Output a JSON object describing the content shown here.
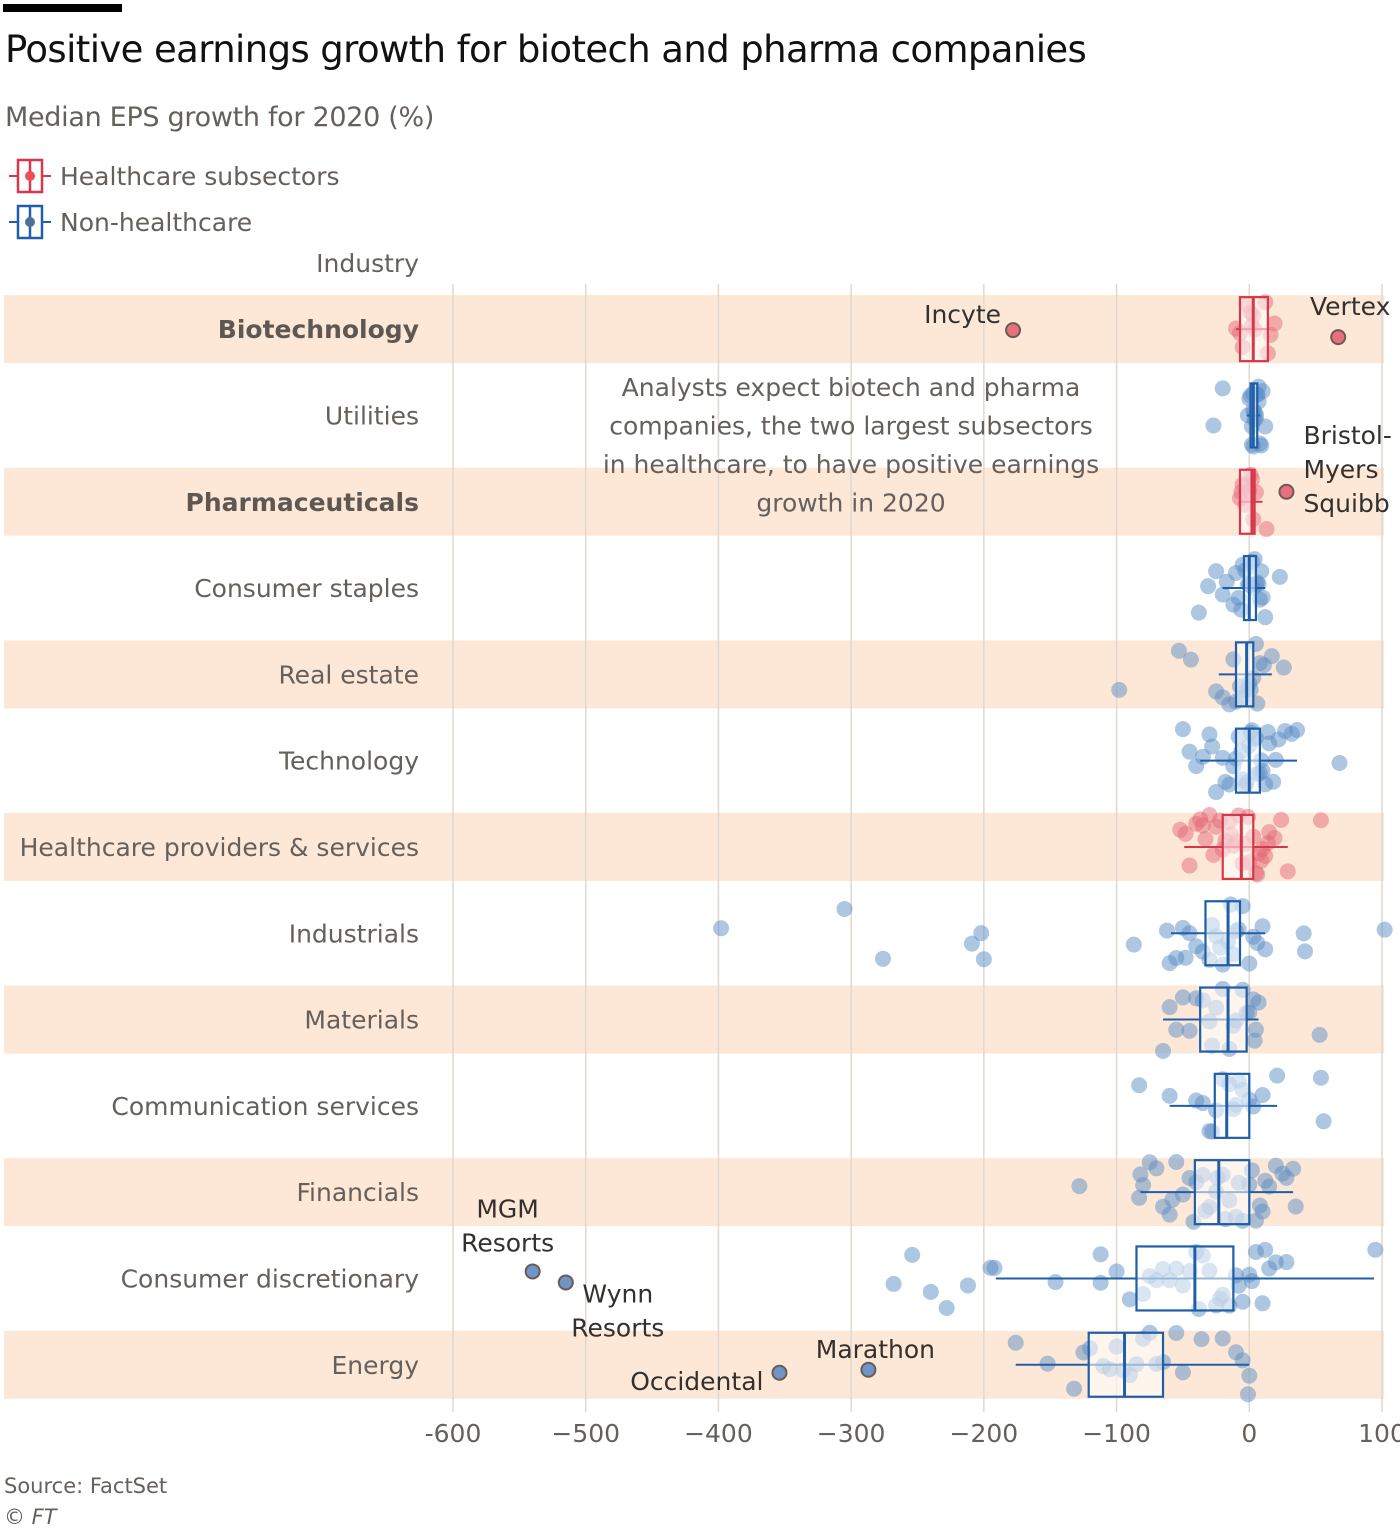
{
  "header": {
    "title": "Positive earnings growth for biotech and pharma companies",
    "subtitle": "Median EPS growth for 2020 (%)"
  },
  "legend": [
    {
      "label": "Healthcare subsectors",
      "color": "#d7374a",
      "dot": "#e8606e"
    },
    {
      "label": "Non-healthcare",
      "color": "#1f5fa8",
      "dot": "#4e6f96"
    }
  ],
  "footer": {
    "source": "Source: FactSet",
    "credit": "© FT"
  },
  "colors": {
    "healthcare": "#d7374a",
    "healthcare_dot": "#e46a78",
    "non_healthcare": "#1f5fa8",
    "non_healthcare_dot": "#5b8ec6",
    "band": "#fde8d7",
    "grid": "#e0d8cf"
  },
  "chart_data": {
    "type": "boxplot",
    "title": "Positive earnings growth for biotech and pharma companies",
    "subtitle": "Median EPS growth for 2020 (%)",
    "ylabel": "Industry",
    "xlabel": "",
    "xlim": [
      -600,
      100
    ],
    "xticks": [
      -600,
      -500,
      -400,
      -300,
      -200,
      -100,
      0,
      100
    ],
    "xtick_labels": [
      "-600",
      "−500",
      "−400",
      "−300",
      "−200",
      "−100",
      "0",
      "100"
    ],
    "grid": true,
    "legend_position": "top-left",
    "note": [
      "Analysts expect biotech and pharma",
      "companies, the two largest subsectors",
      "in healthcare, to have positive earnings",
      "growth in 2020"
    ],
    "series": [
      {
        "name": "Biotechnology",
        "group": "healthcare",
        "bold": true,
        "banded": true,
        "whisker_low": -10,
        "q1": -7,
        "median": 3,
        "q3": 14,
        "whisker_high": 15,
        "points": [
          -10,
          -7,
          -2,
          1,
          2,
          4,
          12,
          14,
          16,
          19,
          3,
          -5
        ]
      },
      {
        "name": "Utilities",
        "group": "non_healthcare",
        "bold": false,
        "banded": false,
        "whisker_low": -2,
        "q1": 1,
        "median": 3,
        "q3": 6,
        "whisker_high": 8,
        "points": [
          -27,
          -20,
          -1,
          0,
          2,
          3,
          4,
          5,
          6,
          7,
          8,
          9,
          10,
          4,
          2,
          1,
          3,
          5,
          12,
          7,
          6,
          3
        ]
      },
      {
        "name": "Pharmaceuticals",
        "group": "healthcare",
        "bold": true,
        "banded": true,
        "whisker_low": -7,
        "q1": -7,
        "median": 2,
        "q3": 4,
        "whisker_high": 10,
        "points": [
          -7,
          -5,
          -3,
          0,
          2,
          3,
          5,
          -6,
          1,
          13,
          -2
        ]
      },
      {
        "name": "Consumer staples",
        "group": "non_healthcare",
        "bold": false,
        "banded": false,
        "whisker_low": -20,
        "q1": -4,
        "median": 0,
        "q3": 5,
        "whisker_high": 12,
        "points": [
          -38,
          -31,
          -25,
          -20,
          -17,
          -12,
          -8,
          -5,
          -3,
          0,
          2,
          4,
          6,
          8,
          10,
          12,
          23,
          -1,
          3,
          5,
          -6,
          1,
          7,
          -10,
          9
        ]
      },
      {
        "name": "Real estate",
        "group": "non_healthcare",
        "bold": false,
        "banded": true,
        "whisker_low": -23,
        "q1": -10,
        "median": -2,
        "q3": 3,
        "whisker_high": 17,
        "points": [
          -98,
          -53,
          -44,
          -25,
          -20,
          -15,
          -10,
          -5,
          -2,
          0,
          3,
          5,
          8,
          11,
          17,
          26,
          -7,
          1,
          -12,
          6
        ]
      },
      {
        "name": "Technology",
        "group": "non_healthcare",
        "bold": false,
        "banded": false,
        "whisker_low": -37,
        "q1": -10,
        "median": 0,
        "q3": 8,
        "whisker_high": 36,
        "points": [
          -50,
          -45,
          -40,
          -35,
          -30,
          -25,
          -20,
          -15,
          -12,
          -10,
          -8,
          -5,
          -3,
          0,
          2,
          4,
          6,
          8,
          10,
          12,
          15,
          18,
          22,
          27,
          32,
          36,
          68,
          -18,
          -2,
          5,
          9,
          14,
          -28,
          20,
          1,
          -6
        ]
      },
      {
        "name": "Healthcare providers & services",
        "group": "healthcare",
        "bold": false,
        "banded": true,
        "whisker_low": -49,
        "q1": -20,
        "median": -6,
        "q3": 3,
        "whisker_high": 29,
        "points": [
          -52,
          -48,
          -45,
          -40,
          -35,
          -30,
          -27,
          -22,
          -18,
          -15,
          -12,
          -10,
          -8,
          -5,
          -3,
          0,
          3,
          6,
          9,
          12,
          15,
          19,
          24,
          29,
          54,
          -37,
          -25,
          -14,
          -1,
          7,
          14,
          -33,
          -20,
          5,
          10
        ]
      },
      {
        "name": "Industrials",
        "group": "non_healthcare",
        "bold": false,
        "banded": false,
        "whisker_low": -59,
        "q1": -33,
        "median": -16,
        "q3": -7,
        "whisker_high": 12,
        "points": [
          -398,
          -305,
          -276,
          -209,
          -202,
          -200,
          -87,
          -62,
          -60,
          -55,
          -50,
          -45,
          -40,
          -35,
          -30,
          -25,
          -20,
          -16,
          -12,
          -8,
          -5,
          0,
          3,
          6,
          10,
          12,
          42,
          41,
          102,
          -48,
          -22,
          -14,
          -28,
          -10
        ]
      },
      {
        "name": "Materials",
        "group": "non_healthcare",
        "bold": false,
        "banded": true,
        "whisker_low": -65,
        "q1": -37,
        "median": -16,
        "q3": -2,
        "whisker_high": 7,
        "points": [
          -65,
          -55,
          -50,
          -45,
          -40,
          -35,
          -30,
          -25,
          -20,
          -15,
          -10,
          -5,
          0,
          3,
          5,
          7,
          53,
          -60,
          -28,
          -12,
          -2,
          4
        ]
      },
      {
        "name": "Communication services",
        "group": "non_healthcare",
        "bold": false,
        "banded": false,
        "whisker_low": -60,
        "q1": -26,
        "median": -17,
        "q3": 0,
        "whisker_high": 21,
        "points": [
          -83,
          -60,
          -40,
          -30,
          -25,
          -20,
          -15,
          -10,
          -5,
          0,
          3,
          10,
          21,
          54,
          56,
          -35,
          -12,
          -28,
          -8
        ]
      },
      {
        "name": "Financials",
        "group": "non_healthcare",
        "bold": false,
        "banded": true,
        "whisker_low": -82,
        "q1": -41,
        "median": -23,
        "q3": 0,
        "whisker_high": 33,
        "points": [
          -128,
          -82,
          -80,
          -75,
          -70,
          -65,
          -60,
          -55,
          -50,
          -45,
          -40,
          -35,
          -30,
          -25,
          -20,
          -15,
          -10,
          -5,
          0,
          5,
          10,
          15,
          20,
          25,
          33,
          35,
          -83,
          -42,
          -24,
          -8,
          12,
          2,
          -18,
          -58,
          -33,
          8,
          28
        ]
      },
      {
        "name": "Consumer discretionary",
        "group": "non_healthcare",
        "bold": false,
        "banded": false,
        "whisker_low": -191,
        "q1": -85,
        "median": -41,
        "q3": -12,
        "whisker_high": 94,
        "points": [
          -540,
          -515,
          -268,
          -254,
          -240,
          -228,
          -212,
          -195,
          -192,
          -146,
          -112,
          -112,
          -100,
          -90,
          -80,
          -70,
          -60,
          -50,
          -45,
          -40,
          -35,
          -30,
          -25,
          -20,
          -15,
          -10,
          -5,
          0,
          5,
          10,
          15,
          20,
          28,
          95,
          -65,
          -55,
          -38,
          -22,
          -8,
          2,
          12,
          -75
        ]
      },
      {
        "name": "Energy",
        "group": "non_healthcare",
        "bold": false,
        "banded": true,
        "whisker_low": -176,
        "q1": -121,
        "median": -94,
        "q3": -65,
        "whisker_high": 0,
        "points": [
          -354,
          -287,
          -176,
          -152,
          -125,
          -120,
          -110,
          -105,
          -100,
          -95,
          -90,
          -85,
          -80,
          -75,
          -70,
          -65,
          -55,
          -50,
          -36,
          -20,
          -10,
          -5,
          0,
          -1,
          -132
        ]
      }
    ],
    "annotations": [
      {
        "label": "Incyte",
        "series": "Biotechnology",
        "value": -178
      },
      {
        "label": "Vertex",
        "series": "Biotechnology",
        "value": 67
      },
      {
        "label": "Bristol-Myers Squibb",
        "series": "Pharmaceuticals",
        "value": 28
      },
      {
        "label": "MGM Resorts",
        "series": "Consumer discretionary",
        "value": -540
      },
      {
        "label": "Wynn Resorts",
        "series": "Consumer discretionary",
        "value": -515
      },
      {
        "label": "Occidental",
        "series": "Energy",
        "value": -354
      },
      {
        "label": "Marathon",
        "series": "Energy",
        "value": -287
      }
    ]
  }
}
